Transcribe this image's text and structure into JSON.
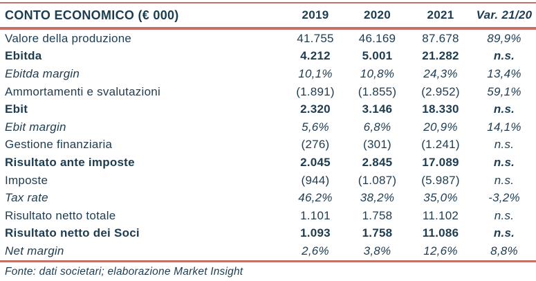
{
  "page": {
    "background_color": "#ffffff",
    "text_color": "#1d3c50",
    "rule_color": "#c56f69"
  },
  "table": {
    "title": "CONTO ECONOMICO (€ 000)",
    "columns": [
      "2019",
      "2020",
      "2021",
      "Var. 21/20"
    ],
    "rows": [
      {
        "label": "Valore della produzione",
        "style": "regular",
        "values": [
          "41.755",
          "46.169",
          "87.678"
        ],
        "var_21_20": "89,9%"
      },
      {
        "label": "Ebitda",
        "style": "bold",
        "values": [
          "4.212",
          "5.001",
          "21.282"
        ],
        "var_21_20": "n.s."
      },
      {
        "label": "Ebitda margin",
        "style": "italic",
        "values": [
          "10,1%",
          "10,8%",
          "24,3%"
        ],
        "var_21_20": "13,4%"
      },
      {
        "label": "Ammortamenti e svalutazioni",
        "style": "regular",
        "values": [
          "(1.891)",
          "(1.855)",
          "(2.952)"
        ],
        "var_21_20": "59,1%"
      },
      {
        "label": "Ebit",
        "style": "bold",
        "values": [
          "2.320",
          "3.146",
          "18.330"
        ],
        "var_21_20": "n.s."
      },
      {
        "label": "Ebit margin",
        "style": "italic",
        "values": [
          "5,6%",
          "6,8%",
          "20,9%"
        ],
        "var_21_20": "14,1%"
      },
      {
        "label": "Gestione finanziaria",
        "style": "regular",
        "values": [
          "(276)",
          "(301)",
          "(1.241)"
        ],
        "var_21_20": "n.s."
      },
      {
        "label": "Risultato ante imposte",
        "style": "bold",
        "values": [
          "2.045",
          "2.845",
          "17.089"
        ],
        "var_21_20": "n.s."
      },
      {
        "label": "Imposte",
        "style": "regular",
        "values": [
          "(944)",
          "(1.087)",
          "(5.987)"
        ],
        "var_21_20": "n.s."
      },
      {
        "label": "Tax rate",
        "style": "italic",
        "values": [
          "46,2%",
          "38,2%",
          "35,0%"
        ],
        "var_21_20": "-3,2%"
      },
      {
        "label": "Risultato netto totale",
        "style": "regular",
        "values": [
          "1.101",
          "1.758",
          "11.102"
        ],
        "var_21_20": "n.s."
      },
      {
        "label": "Risultato netto dei Soci",
        "style": "bold",
        "values": [
          "1.093",
          "1.758",
          "11.086"
        ],
        "var_21_20": "n.s."
      },
      {
        "label": "Net margin",
        "style": "italic",
        "values": [
          "2,6%",
          "3,8%",
          "12,6%"
        ],
        "var_21_20": "8,8%"
      }
    ]
  },
  "footer": {
    "source": "Fonte: dati societari; elaborazione Market Insight"
  }
}
